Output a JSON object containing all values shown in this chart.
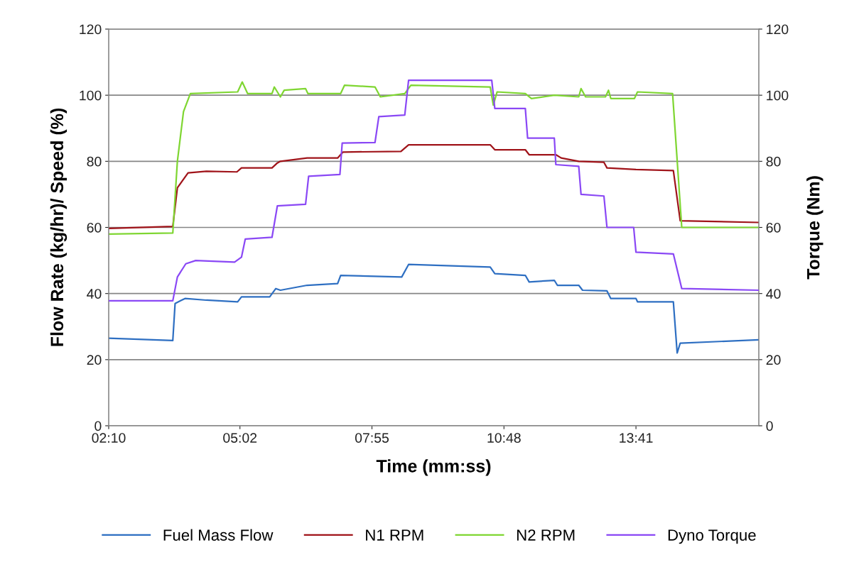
{
  "chart_data": {
    "type": "line",
    "xlabel": "Time (mm:ss)",
    "ylabel": "Flow Rate (kg/hr)/ Speed (%)",
    "y2label": "Torque (Nm)",
    "xlim": [
      130,
      982
    ],
    "xticks": [
      {
        "value": 130,
        "label": "02:10"
      },
      {
        "value": 302,
        "label": "05:02"
      },
      {
        "value": 475,
        "label": "07:55"
      },
      {
        "value": 648,
        "label": "10:48"
      },
      {
        "value": 821,
        "label": "13:41"
      }
    ],
    "ylim": [
      0,
      120
    ],
    "yticks": [
      0,
      20,
      40,
      60,
      80,
      100,
      120
    ],
    "y2lim": [
      0,
      120
    ],
    "y2ticks": [
      0,
      20,
      40,
      60,
      80,
      100,
      120
    ],
    "grid": "y",
    "legend": "bottom",
    "marker": "none",
    "line_style": "solid",
    "series": [
      {
        "name": "Fuel Mass Flow",
        "color": "#2e6fc2",
        "x": [
          130,
          214,
          217,
          230,
          258,
          299,
          304,
          341,
          349,
          355,
          390,
          430,
          434,
          514,
          523,
          630,
          636,
          676,
          681,
          714,
          718,
          746,
          751,
          783,
          788,
          821,
          823,
          870,
          875,
          879,
          982
        ],
        "values": [
          26.5,
          25.8,
          37,
          38.5,
          38,
          37.5,
          39,
          39,
          41.5,
          41,
          42.5,
          43,
          45.5,
          45,
          48.8,
          48,
          46,
          45.5,
          43.5,
          44,
          42.5,
          42.5,
          41,
          40.8,
          38.5,
          38.5,
          37.5,
          37.5,
          22,
          25,
          26
        ]
      },
      {
        "name": "N1 RPM",
        "color": "#a0141a",
        "x": [
          130,
          214,
          220,
          234,
          258,
          298,
          304,
          344,
          351,
          355,
          390,
          430,
          437,
          513,
          523,
          630,
          636,
          676,
          681,
          716,
          723,
          746,
          779,
          783,
          821,
          870,
          879,
          982
        ],
        "values": [
          59.7,
          60.3,
          72,
          76.5,
          77,
          76.8,
          78,
          78,
          79.5,
          80,
          81,
          81,
          82.8,
          83,
          85,
          85,
          83.5,
          83.5,
          82,
          82,
          81,
          80,
          79.7,
          78,
          77.5,
          77.2,
          62,
          61.5
        ]
      },
      {
        "name": "N2 RPM",
        "color": "#7fd632",
        "x": [
          130,
          214,
          220,
          228,
          237,
          299,
          305,
          312,
          344,
          347,
          355,
          360,
          388,
          391,
          434,
          439,
          479,
          486,
          518,
          526,
          630,
          634,
          639,
          676,
          684,
          714,
          746,
          749,
          755,
          781,
          785,
          788,
          819,
          823,
          869,
          881,
          982
        ],
        "values": [
          58,
          58.3,
          80,
          95,
          100.5,
          101,
          104,
          100.5,
          100.5,
          102.5,
          99.5,
          101.5,
          102,
          100.5,
          100.5,
          103,
          102.5,
          99.5,
          100.5,
          103,
          102.5,
          97,
          101,
          100.5,
          99,
          100,
          99.5,
          102,
          99.5,
          99.5,
          101.5,
          99,
          99,
          101,
          100.5,
          60,
          60
        ]
      },
      {
        "name": "Dyno Torque",
        "color": "#8a48f5",
        "axis": "y2",
        "x": [
          130,
          214,
          220,
          231,
          244,
          295,
          304,
          309,
          344,
          351,
          388,
          392,
          433,
          436,
          479,
          484,
          518,
          523,
          632,
          636,
          676,
          679,
          714,
          716,
          746,
          749,
          779,
          783,
          818,
          821,
          870,
          881,
          982
        ],
        "values": [
          37.8,
          37.8,
          45,
          49,
          50,
          49.5,
          51,
          56.5,
          57,
          66.5,
          67,
          75.5,
          76,
          85.5,
          85.7,
          93.5,
          94,
          104.5,
          104.5,
          96,
          96,
          87,
          87,
          79,
          78.5,
          70,
          69.5,
          60,
          60,
          52.5,
          52,
          41.5,
          41
        ]
      }
    ]
  }
}
